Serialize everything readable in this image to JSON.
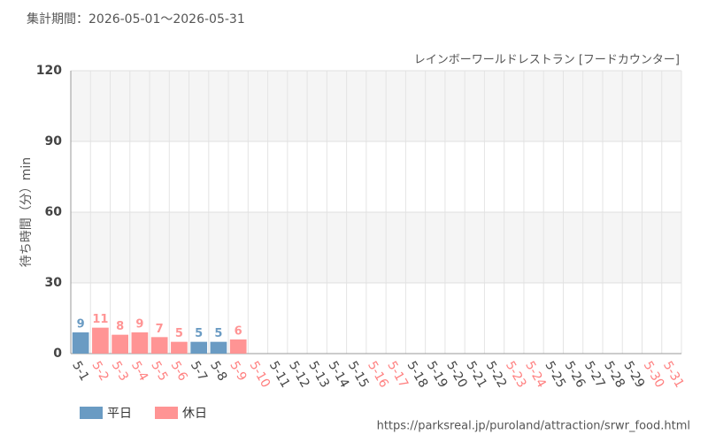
{
  "chart_data": {
    "type": "bar",
    "title": "集計期間：2026-05-01～2026-05-31",
    "subtitle": "レインボーワールドレストラン [フードカウンター]",
    "y_label": "待ち時間（分）min",
    "source": "https://parksreal.jp/puroland/attraction/srwr_food.html",
    "categories": [
      "5-1",
      "5-2",
      "5-3",
      "5-4",
      "5-5",
      "5-6",
      "5-7",
      "5-8",
      "5-9",
      "5-10",
      "5-11",
      "5-12",
      "5-13",
      "5-14",
      "5-15",
      "5-16",
      "5-17",
      "5-18",
      "5-19",
      "5-20",
      "5-21",
      "5-22",
      "5-23",
      "5-24",
      "5-25",
      "5-26",
      "5-27",
      "5-28",
      "5-29",
      "5-30",
      "5-31"
    ],
    "category_colors": [
      "#444444",
      "#ff8080",
      "#ff8080",
      "#ff8080",
      "#ff8080",
      "#ff8080",
      "#444444",
      "#444444",
      "#ff8080",
      "#ff8080",
      "#444444",
      "#444444",
      "#444444",
      "#444444",
      "#444444",
      "#ff8080",
      "#ff8080",
      "#444444",
      "#444444",
      "#444444",
      "#444444",
      "#444444",
      "#ff8080",
      "#ff8080",
      "#444444",
      "#444444",
      "#444444",
      "#444444",
      "#444444",
      "#ff8080",
      "#ff8080"
    ],
    "series": [
      {
        "name": "平日",
        "color": "#6a9bc3",
        "values": [
          9,
          null,
          null,
          null,
          null,
          null,
          5,
          5,
          null,
          null,
          null,
          null,
          null,
          null,
          null,
          null,
          null,
          null,
          null,
          null,
          null,
          null,
          null,
          null,
          null,
          null,
          null,
          null,
          null,
          null,
          null
        ]
      },
      {
        "name": "休日",
        "color": "#ff9494",
        "values": [
          null,
          11,
          8,
          9,
          7,
          5,
          null,
          null,
          6,
          null,
          null,
          null,
          null,
          null,
          null,
          null,
          null,
          null,
          null,
          null,
          null,
          null,
          null,
          null,
          null,
          null,
          null,
          null,
          null,
          null,
          null
        ]
      }
    ],
    "ylim": [
      0,
      120
    ],
    "yticks": [
      0,
      30,
      60,
      90,
      120
    ],
    "grid": true
  }
}
